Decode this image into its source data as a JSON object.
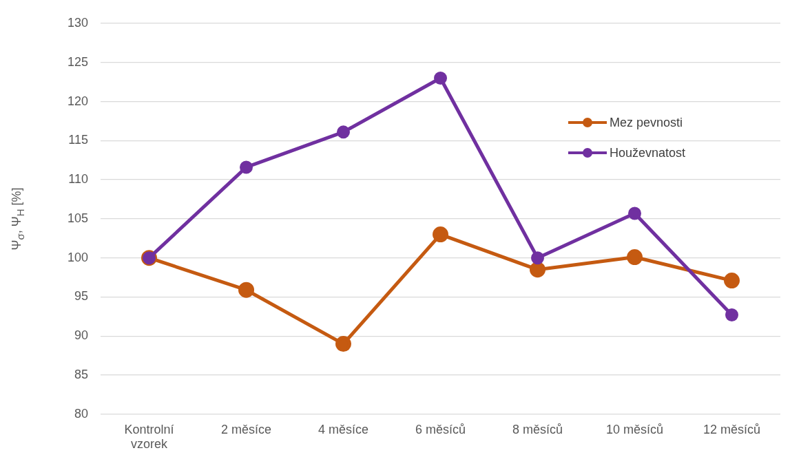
{
  "chart_data": {
    "type": "line",
    "ylabel": "Ψ$_{σ}$, Ψ$_{H}$ [%]",
    "categories": [
      "Kontrolní vzorek",
      "2 měsíce",
      "4 měsíce",
      "6 měsíců",
      "8 měsíců",
      "10 měsíců",
      "12 měsíců"
    ],
    "series": [
      {
        "name": "Mez pevnosti",
        "color": "#c55a11",
        "values": [
          100,
          95.9,
          89,
          103,
          98.5,
          100.1,
          97.1
        ]
      },
      {
        "name": "Houževnatost",
        "color": "#7030a0",
        "values": [
          100,
          111.6,
          116.1,
          123,
          100,
          105.7,
          92.7
        ]
      }
    ],
    "ylim": [
      80,
      130
    ],
    "yticks": [
      80,
      85,
      90,
      95,
      100,
      105,
      110,
      115,
      120,
      125,
      130
    ],
    "grid": "y",
    "legend": "right",
    "marker": "circle",
    "line_style": "solid"
  }
}
